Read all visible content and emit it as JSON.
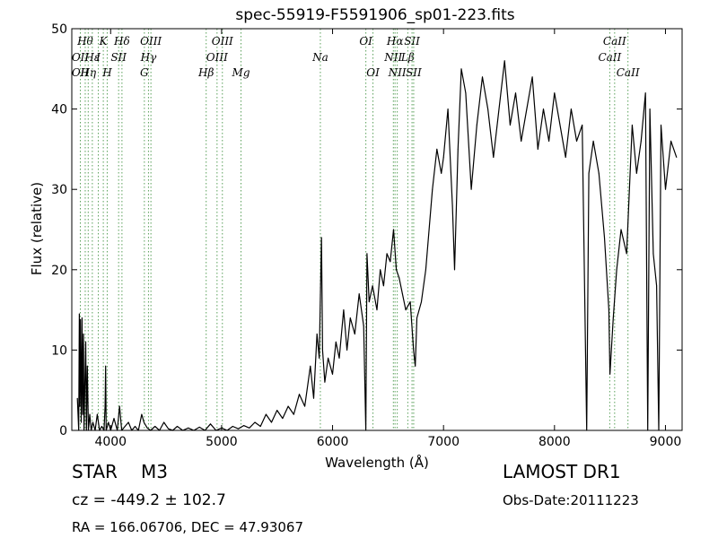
{
  "chart_data": {
    "type": "line",
    "title": "spec-55919-F5591906_sp01-223.fits",
    "xlabel": "Wavelength (Å)",
    "ylabel": "Flux (relative)",
    "xlim": [
      3650,
      9150
    ],
    "ylim": [
      0,
      50
    ],
    "xticks": [
      4000,
      5000,
      6000,
      7000,
      8000,
      9000
    ],
    "yticks": [
      0,
      10,
      20,
      30,
      40,
      50
    ],
    "line_color": "#000000",
    "marker_color": "#5aa05a",
    "series": [
      {
        "values": [
          [
            3700,
            4
          ],
          [
            3712,
            0
          ],
          [
            3718,
            14.5
          ],
          [
            3722,
            3
          ],
          [
            3728,
            13.8
          ],
          [
            3735,
            1
          ],
          [
            3742,
            14
          ],
          [
            3748,
            2
          ],
          [
            3755,
            12
          ],
          [
            3760,
            0
          ],
          [
            3768,
            6
          ],
          [
            3775,
            11
          ],
          [
            3782,
            0
          ],
          [
            3790,
            8
          ],
          [
            3800,
            0
          ],
          [
            3812,
            2
          ],
          [
            3825,
            0
          ],
          [
            3840,
            1
          ],
          [
            3860,
            0
          ],
          [
            3880,
            2
          ],
          [
            3900,
            0
          ],
          [
            3920,
            0.5
          ],
          [
            3940,
            0
          ],
          [
            3950,
            3
          ],
          [
            3955,
            8
          ],
          [
            3960,
            0
          ],
          [
            3980,
            1
          ],
          [
            4000,
            0
          ],
          [
            4030,
            1.5
          ],
          [
            4060,
            0
          ],
          [
            4080,
            3
          ],
          [
            4100,
            0
          ],
          [
            4130,
            0.5
          ],
          [
            4160,
            1
          ],
          [
            4190,
            0
          ],
          [
            4220,
            0.5
          ],
          [
            4250,
            0
          ],
          [
            4280,
            2
          ],
          [
            4300,
            1
          ],
          [
            4330,
            0.3
          ],
          [
            4360,
            0
          ],
          [
            4400,
            0.5
          ],
          [
            4440,
            0
          ],
          [
            4480,
            1
          ],
          [
            4520,
            0.2
          ],
          [
            4560,
            0
          ],
          [
            4600,
            0.5
          ],
          [
            4650,
            0
          ],
          [
            4700,
            0.3
          ],
          [
            4750,
            0
          ],
          [
            4800,
            0.4
          ],
          [
            4850,
            0
          ],
          [
            4900,
            0.8
          ],
          [
            4950,
            0
          ],
          [
            5000,
            0.3
          ],
          [
            5050,
            0
          ],
          [
            5100,
            0.5
          ],
          [
            5150,
            0.2
          ],
          [
            5200,
            0.6
          ],
          [
            5250,
            0.3
          ],
          [
            5300,
            1
          ],
          [
            5350,
            0.5
          ],
          [
            5400,
            2
          ],
          [
            5450,
            1
          ],
          [
            5500,
            2.5
          ],
          [
            5550,
            1.5
          ],
          [
            5600,
            3
          ],
          [
            5650,
            2
          ],
          [
            5700,
            4.5
          ],
          [
            5750,
            3
          ],
          [
            5800,
            8
          ],
          [
            5830,
            4
          ],
          [
            5860,
            12
          ],
          [
            5880,
            9
          ],
          [
            5900,
            24
          ],
          [
            5910,
            10
          ],
          [
            5930,
            6
          ],
          [
            5960,
            9
          ],
          [
            6000,
            7
          ],
          [
            6030,
            11
          ],
          [
            6060,
            9
          ],
          [
            6100,
            15
          ],
          [
            6130,
            10
          ],
          [
            6160,
            14
          ],
          [
            6200,
            12
          ],
          [
            6240,
            17
          ],
          [
            6280,
            13
          ],
          [
            6300,
            0
          ],
          [
            6310,
            22
          ],
          [
            6330,
            16
          ],
          [
            6360,
            18
          ],
          [
            6400,
            15
          ],
          [
            6430,
            20
          ],
          [
            6460,
            18
          ],
          [
            6490,
            22
          ],
          [
            6520,
            21
          ],
          [
            6550,
            25
          ],
          [
            6575,
            20
          ],
          [
            6600,
            19
          ],
          [
            6630,
            17
          ],
          [
            6660,
            15
          ],
          [
            6700,
            16
          ],
          [
            6730,
            10
          ],
          [
            6745,
            8
          ],
          [
            6760,
            14
          ],
          [
            6800,
            16
          ],
          [
            6840,
            20
          ],
          [
            6870,
            25
          ],
          [
            6900,
            30
          ],
          [
            6940,
            35
          ],
          [
            6980,
            32
          ],
          [
            7000,
            34
          ],
          [
            7040,
            40
          ],
          [
            7080,
            28
          ],
          [
            7100,
            20
          ],
          [
            7130,
            35
          ],
          [
            7160,
            45
          ],
          [
            7200,
            42
          ],
          [
            7250,
            30
          ],
          [
            7300,
            38
          ],
          [
            7350,
            44
          ],
          [
            7400,
            40
          ],
          [
            7450,
            34
          ],
          [
            7500,
            40
          ],
          [
            7550,
            46
          ],
          [
            7600,
            38
          ],
          [
            7650,
            42
          ],
          [
            7700,
            36
          ],
          [
            7750,
            40
          ],
          [
            7800,
            44
          ],
          [
            7850,
            35
          ],
          [
            7900,
            40
          ],
          [
            7950,
            36
          ],
          [
            8000,
            42
          ],
          [
            8050,
            38
          ],
          [
            8100,
            34
          ],
          [
            8150,
            40
          ],
          [
            8200,
            36
          ],
          [
            8250,
            38
          ],
          [
            8290,
            0
          ],
          [
            8310,
            32
          ],
          [
            8350,
            36
          ],
          [
            8400,
            32
          ],
          [
            8450,
            24
          ],
          [
            8490,
            15
          ],
          [
            8500,
            7
          ],
          [
            8530,
            14
          ],
          [
            8560,
            20
          ],
          [
            8600,
            25
          ],
          [
            8650,
            22
          ],
          [
            8700,
            38
          ],
          [
            8740,
            32
          ],
          [
            8780,
            36
          ],
          [
            8820,
            42
          ],
          [
            8840,
            0
          ],
          [
            8860,
            40
          ],
          [
            8890,
            22
          ],
          [
            8920,
            18
          ],
          [
            8940,
            0
          ],
          [
            8960,
            38
          ],
          [
            9000,
            30
          ],
          [
            9050,
            36
          ],
          [
            9100,
            34
          ]
        ]
      }
    ],
    "line_markers": [
      {
        "wavelength": 3727,
        "label": "OII",
        "row": 3
      },
      {
        "wavelength": 3727,
        "label": "OII",
        "row": 2
      },
      {
        "wavelength": 3771,
        "label": "Hθ",
        "row": 1
      },
      {
        "wavelength": 3798,
        "label": "Hη",
        "row": 3
      },
      {
        "wavelength": 3835,
        "label": "Hε",
        "row": 2
      },
      {
        "wavelength": 3934,
        "label": "K",
        "row": 1
      },
      {
        "wavelength": 3969,
        "label": "H",
        "row": 3
      },
      {
        "wavelength": 3889,
        "label": "I",
        "row": 2
      },
      {
        "wavelength": 4072,
        "label": "SII",
        "row": 2
      },
      {
        "wavelength": 4102,
        "label": "Hδ",
        "row": 1
      },
      {
        "wavelength": 4304,
        "label": "G",
        "row": 3
      },
      {
        "wavelength": 4341,
        "label": "Hγ",
        "row": 2
      },
      {
        "wavelength": 4363,
        "label": "OIII",
        "row": 1
      },
      {
        "wavelength": 4861,
        "label": "Hβ",
        "row": 3
      },
      {
        "wavelength": 4959,
        "label": "OIII",
        "row": 2
      },
      {
        "wavelength": 5007,
        "label": "OIII",
        "row": 1
      },
      {
        "wavelength": 5175,
        "label": "Mg",
        "row": 3
      },
      {
        "wavelength": 5890,
        "label": "Na",
        "row": 2
      },
      {
        "wavelength": 6300,
        "label": "OI",
        "row": 1
      },
      {
        "wavelength": 6364,
        "label": "OI",
        "row": 3
      },
      {
        "wavelength": 6548,
        "label": "NII",
        "row": 2
      },
      {
        "wavelength": 6563,
        "label": "Hα",
        "row": 1
      },
      {
        "wavelength": 6583,
        "label": "NII",
        "row": 3
      },
      {
        "wavelength": 6678,
        "label": "Lβ",
        "row": 2
      },
      {
        "wavelength": 6716,
        "label": "SII",
        "row": 1
      },
      {
        "wavelength": 6731,
        "label": "SII",
        "row": 3
      },
      {
        "wavelength": 8498,
        "label": "CaII",
        "row": 2
      },
      {
        "wavelength": 8542,
        "label": "CaII",
        "row": 1
      },
      {
        "wavelength": 8662,
        "label": "CaII",
        "row": 3
      }
    ]
  },
  "info": {
    "object_type": "STAR",
    "subclass": "M3",
    "redshift": "cz = -449.2 ± 102.7",
    "coords": "RA = 166.06706, DEC = 47.93067",
    "survey": "LAMOST DR1",
    "obs_date": "Obs-Date:20111223"
  }
}
